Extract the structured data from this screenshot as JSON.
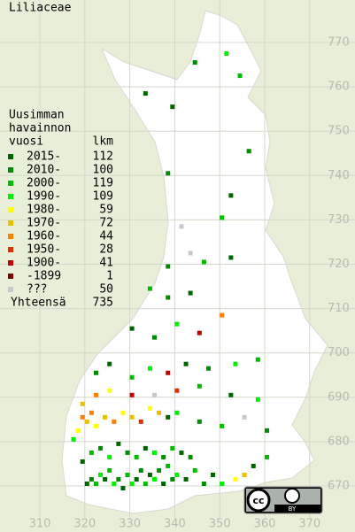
{
  "map": {
    "title": "Liliaceae",
    "legend": {
      "heading": [
        "Uusimman",
        "havainnon",
        "vuosi"
      ],
      "count_heading": "lkm",
      "entries": [
        {
          "label": "2015-",
          "count": 112,
          "color": "#006400"
        },
        {
          "label": "2010-",
          "count": 100,
          "color": "#008c00"
        },
        {
          "label": "2000-",
          "count": 119,
          "color": "#00bb00"
        },
        {
          "label": "1990-",
          "count": 109,
          "color": "#00ee00"
        },
        {
          "label": "1980-",
          "count": 59,
          "color": "#ffff00"
        },
        {
          "label": "1970-",
          "count": 72,
          "color": "#e8c000"
        },
        {
          "label": "1960-",
          "count": 44,
          "color": "#ff8000"
        },
        {
          "label": "1950-",
          "count": 28,
          "color": "#e03000"
        },
        {
          "label": "1900-",
          "count": 41,
          "color": "#c00000"
        },
        {
          "label": "-1899",
          "count": 1,
          "color": "#800000"
        },
        {
          "label": "???",
          "count": 50,
          "color": "#c8c8c8"
        }
      ],
      "total_label": "Yhteensä",
      "total": 735
    },
    "xticks": [
      310,
      320,
      330,
      340,
      350,
      360,
      370
    ],
    "yticks": [
      670,
      680,
      690,
      700,
      710,
      720,
      730,
      740,
      750,
      760,
      770
    ],
    "badge": {
      "cc": "cc",
      "by": "BY"
    },
    "squares": [
      [
        320,
        670,
        0
      ],
      [
        321,
        671,
        1
      ],
      [
        322,
        670,
        2
      ],
      [
        323,
        672,
        3
      ],
      [
        324,
        671,
        0
      ],
      [
        325,
        673,
        2
      ],
      [
        326,
        670,
        3
      ],
      [
        327,
        671,
        1
      ],
      [
        328,
        669,
        0
      ],
      [
        329,
        672,
        2
      ],
      [
        330,
        670,
        3
      ],
      [
        331,
        671,
        0
      ],
      [
        332,
        673,
        1
      ],
      [
        333,
        670,
        2
      ],
      [
        334,
        672,
        0
      ],
      [
        335,
        671,
        3
      ],
      [
        336,
        673,
        1
      ],
      [
        337,
        670,
        0
      ],
      [
        338,
        674,
        2
      ],
      [
        339,
        671,
        1
      ],
      [
        340,
        672,
        3
      ],
      [
        342,
        671,
        0
      ],
      [
        344,
        673,
        2
      ],
      [
        346,
        670,
        1
      ],
      [
        348,
        672,
        0
      ],
      [
        350,
        670,
        3
      ],
      [
        353,
        671,
        4
      ],
      [
        355,
        672,
        5
      ],
      [
        357,
        674,
        0
      ],
      [
        360,
        676,
        2
      ],
      [
        319,
        675,
        0
      ],
      [
        321,
        677,
        2
      ],
      [
        323,
        678,
        1
      ],
      [
        325,
        676,
        3
      ],
      [
        327,
        679,
        0
      ],
      [
        329,
        677,
        1
      ],
      [
        331,
        676,
        2
      ],
      [
        333,
        678,
        0
      ],
      [
        335,
        677,
        3
      ],
      [
        337,
        676,
        1
      ],
      [
        339,
        678,
        2
      ],
      [
        341,
        677,
        0
      ],
      [
        343,
        676,
        1
      ],
      [
        318,
        682,
        4
      ],
      [
        319,
        685,
        6
      ],
      [
        320,
        684,
        5
      ],
      [
        321,
        686,
        6
      ],
      [
        322,
        683,
        4
      ],
      [
        324,
        685,
        5
      ],
      [
        326,
        684,
        6
      ],
      [
        328,
        686,
        4
      ],
      [
        330,
        685,
        5
      ],
      [
        332,
        684,
        7
      ],
      [
        334,
        687,
        4
      ],
      [
        336,
        686,
        5
      ],
      [
        338,
        685,
        0
      ],
      [
        340,
        686,
        3
      ],
      [
        345,
        684,
        1
      ],
      [
        350,
        683,
        2
      ],
      [
        355,
        685,
        10
      ],
      [
        360,
        682,
        1
      ],
      [
        317,
        680,
        3
      ],
      [
        319,
        688,
        5
      ],
      [
        322,
        690,
        6
      ],
      [
        325,
        691,
        4
      ],
      [
        330,
        690,
        8
      ],
      [
        335,
        690,
        10
      ],
      [
        340,
        691,
        7
      ],
      [
        345,
        692,
        2
      ],
      [
        352,
        690,
        0
      ],
      [
        358,
        689,
        3
      ],
      [
        322,
        695,
        1
      ],
      [
        325,
        697,
        0
      ],
      [
        330,
        694,
        2
      ],
      [
        334,
        696,
        3
      ],
      [
        338,
        695,
        8
      ],
      [
        342,
        697,
        0
      ],
      [
        347,
        696,
        1
      ],
      [
        353,
        697,
        3
      ],
      [
        358,
        698,
        2
      ],
      [
        330,
        705,
        0
      ],
      [
        335,
        703,
        1
      ],
      [
        340,
        706,
        3
      ],
      [
        345,
        704,
        8
      ],
      [
        350,
        708,
        6
      ],
      [
        343,
        713,
        0
      ],
      [
        338,
        712,
        1
      ],
      [
        334,
        714,
        2
      ],
      [
        338,
        719,
        1
      ],
      [
        343,
        722,
        10
      ],
      [
        346,
        720,
        2
      ],
      [
        352,
        721,
        0
      ],
      [
        341,
        728,
        10
      ],
      [
        350,
        730,
        2
      ],
      [
        352,
        735,
        0
      ],
      [
        356,
        745,
        1
      ],
      [
        354,
        762,
        2
      ],
      [
        344,
        765,
        1
      ],
      [
        351,
        767,
        3
      ],
      [
        333,
        758,
        0
      ],
      [
        339,
        755,
        0
      ],
      [
        338,
        740,
        1
      ]
    ]
  }
}
